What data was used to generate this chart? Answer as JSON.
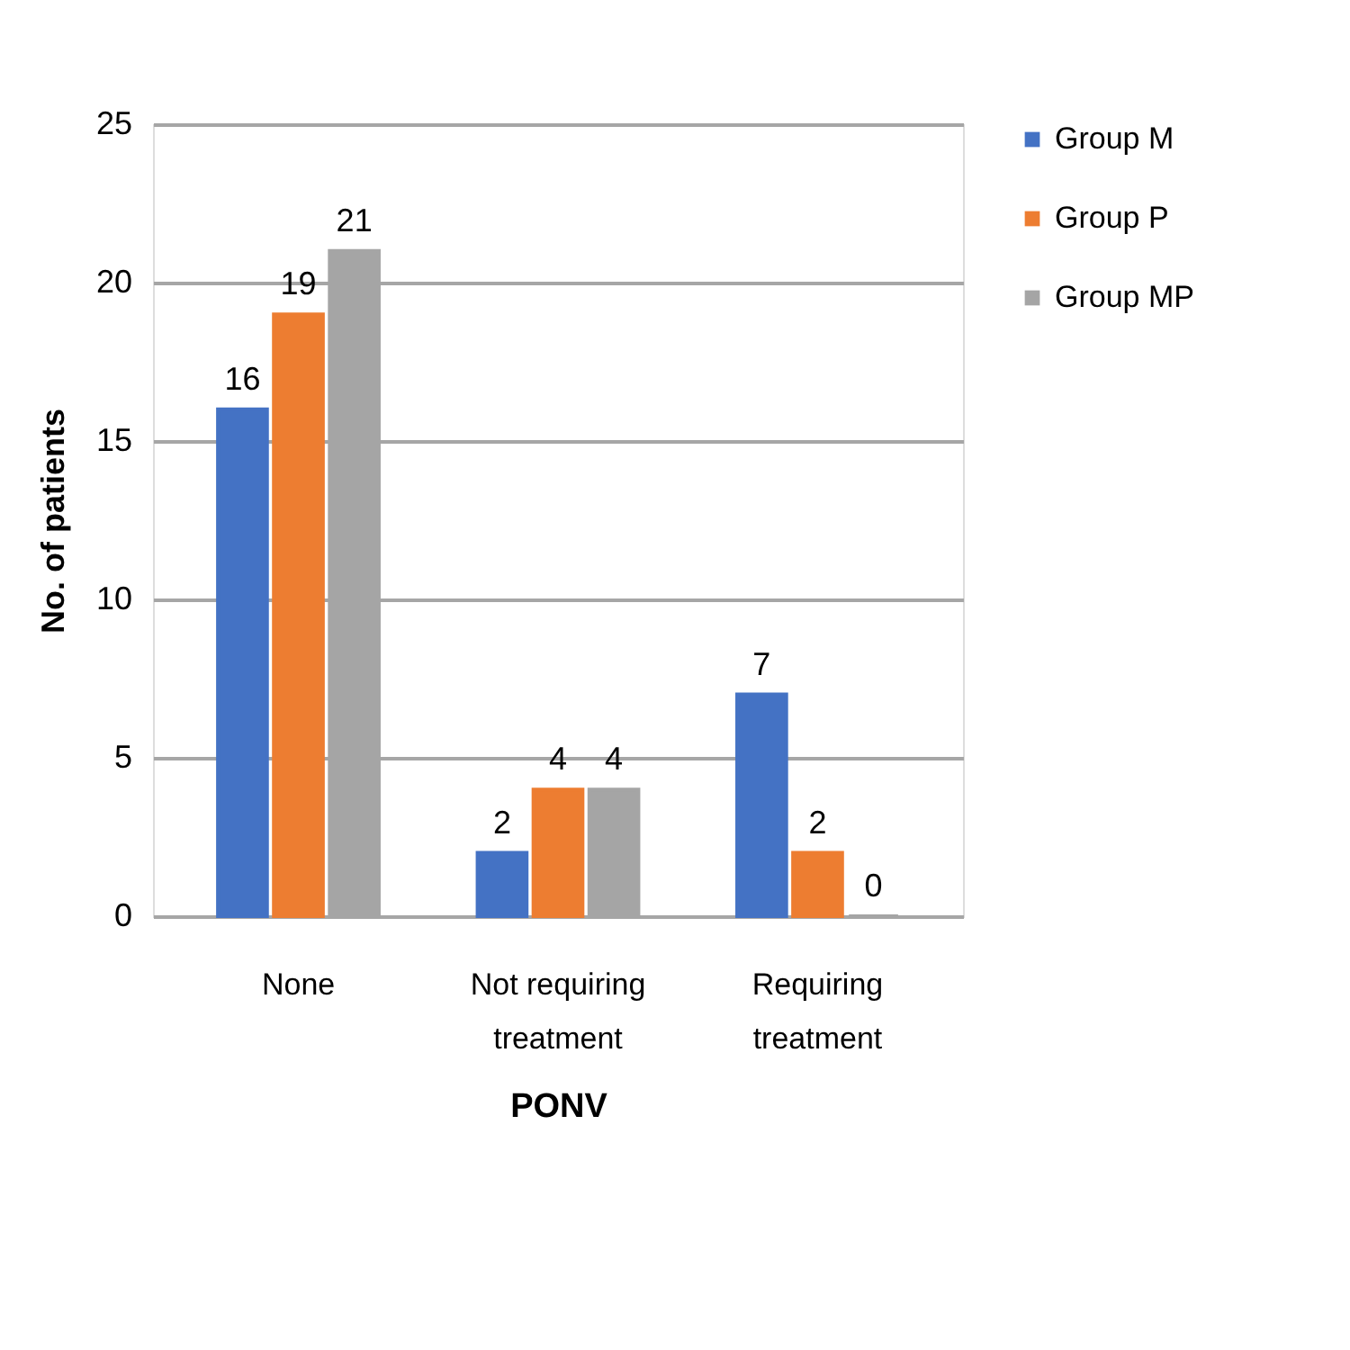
{
  "chart_data": {
    "type": "bar",
    "xlabel": "PONV",
    "ylabel": "No. of patients",
    "categories": [
      "None",
      "Not requiring treatment",
      "Requiring treatment"
    ],
    "series": [
      {
        "name": "Group M",
        "color": "#4472c4",
        "values": [
          16,
          2,
          7
        ]
      },
      {
        "name": "Group P",
        "color": "#ed7d31",
        "values": [
          19,
          4,
          2
        ]
      },
      {
        "name": "Group MP",
        "color": "#a5a5a5",
        "values": [
          21,
          4,
          0
        ]
      }
    ],
    "ylim": [
      0,
      25
    ],
    "yticks": [
      0,
      5,
      10,
      15,
      20,
      25
    ],
    "grid": "y",
    "legend": "right",
    "data_labels": true
  }
}
